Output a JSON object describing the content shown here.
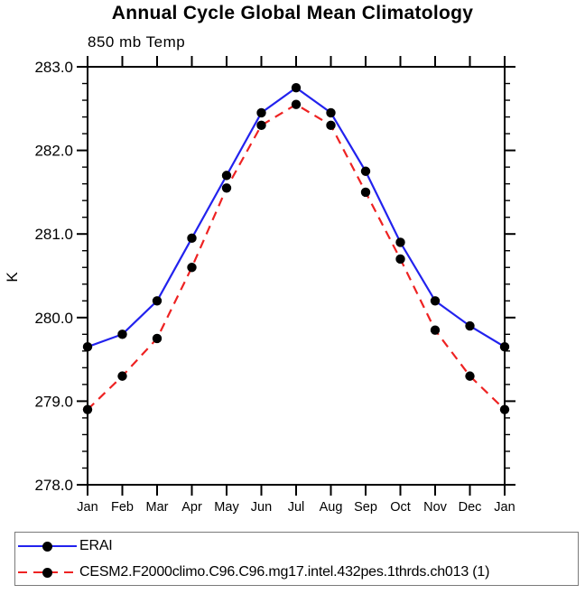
{
  "chart_data": {
    "type": "line",
    "title": "Annual Cycle Global Mean Climatology",
    "subtitle": "850 mb Temp",
    "ylabel": "K",
    "xlabel": "",
    "ylim": [
      278.0,
      283.0
    ],
    "ytick_step": 1.0,
    "yminor_step": 0.2,
    "ytick_labels": [
      "283.0",
      "282.0",
      "281.0",
      "280.0",
      "279.0",
      "278.0"
    ],
    "categories": [
      "Jan",
      "Feb",
      "Mar",
      "Apr",
      "May",
      "Jun",
      "Jul",
      "Aug",
      "Sep",
      "Oct",
      "Nov",
      "Dec",
      "Jan"
    ],
    "grid": false,
    "legend_position": "bottom",
    "series": [
      {
        "name": "ERAI",
        "color": "#2222ee",
        "style": "solid",
        "marker": "filled-circle",
        "marker_color": "#000000",
        "values": [
          279.65,
          279.8,
          280.2,
          280.95,
          281.7,
          282.45,
          282.75,
          282.45,
          281.75,
          280.9,
          280.2,
          279.9,
          279.65
        ]
      },
      {
        "name": "CESM2.F2000climo.C96.C96.mg17.intel.432pes.1thrds.ch013 (1)",
        "color": "#ee2222",
        "style": "dashed",
        "marker": "filled-circle",
        "marker_color": "#000000",
        "values": [
          278.9,
          279.3,
          279.75,
          280.6,
          281.55,
          282.3,
          282.55,
          282.3,
          281.5,
          280.7,
          279.85,
          279.3,
          278.9
        ]
      }
    ]
  },
  "colors": {
    "axis": "#000000",
    "legend_border": "#7a7a7a",
    "background": "#ffffff"
  }
}
